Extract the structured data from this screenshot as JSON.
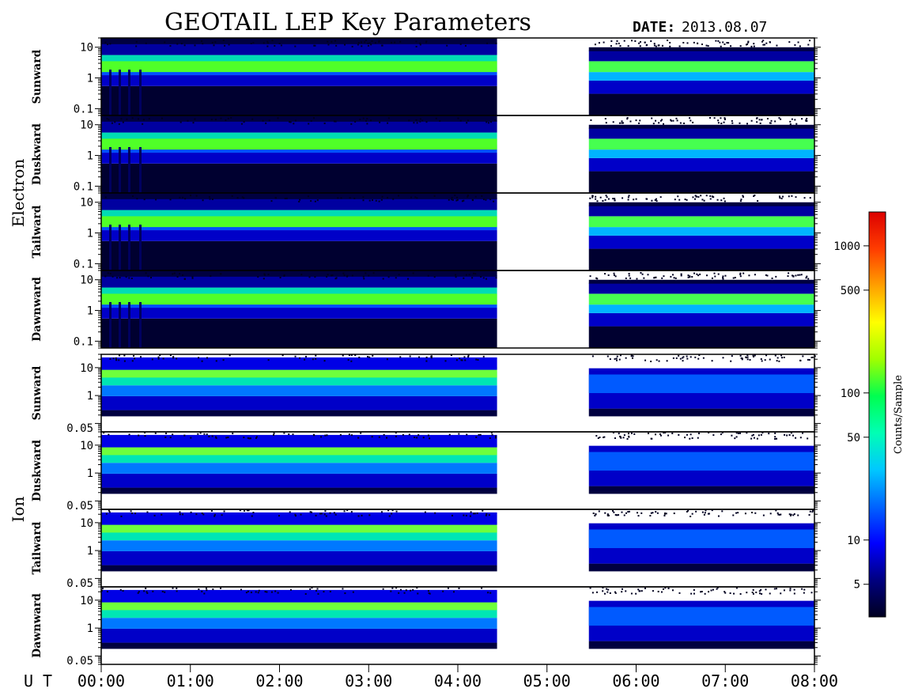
{
  "chart_data": {
    "type": "heatmap",
    "title": "GEOTAIL LEP Key Parameters",
    "date_label": "DATE:",
    "date_value": "2013.08.07",
    "x_axis_label": "U T",
    "x_range_hours": [
      0,
      8
    ],
    "x_ticks": [
      "00:00",
      "01:00",
      "02:00",
      "03:00",
      "04:00",
      "05:00",
      "06:00",
      "07:00",
      "08:00"
    ],
    "data_gaps_hours": [
      [
        4.44,
        5.47
      ]
    ],
    "groups": [
      {
        "name": "Electron",
        "y_scale": "log",
        "y_range": [
          0.06,
          20
        ],
        "y_ticks": [
          {
            "value": 10,
            "label": "10"
          },
          {
            "value": 1,
            "label": "1"
          },
          {
            "value": 0.1,
            "label": "0.1"
          }
        ],
        "panels": [
          "Sunward",
          "Duskward",
          "Tailward",
          "Dawnward"
        ]
      },
      {
        "name": "Ion",
        "y_scale": "log",
        "y_range": [
          0.05,
          30
        ],
        "y_ticks": [
          {
            "value": 10,
            "label": "10"
          },
          {
            "value": 1,
            "label": "1"
          },
          {
            "value": 0.05,
            "label": "0.05"
          }
        ],
        "panels": [
          "Sunward",
          "Duskward",
          "Tailward",
          "Dawnward"
        ]
      }
    ],
    "colorbar": {
      "label": "Counts/Sample",
      "scale": "log",
      "range": [
        3,
        1700
      ],
      "ticks": [
        {
          "value": 1000,
          "label": "1000"
        },
        {
          "value": 500,
          "label": "500"
        },
        {
          "value": 100,
          "label": "100"
        },
        {
          "value": 50,
          "label": "50"
        },
        {
          "value": 10,
          "label": "10"
        },
        {
          "value": 5,
          "label": "5"
        }
      ],
      "colors": [
        "#000020",
        "#000080",
        "#0000ff",
        "#0064ff",
        "#00c8ff",
        "#00ffb4",
        "#00ff50",
        "#a0ff00",
        "#ffff00",
        "#ffa000",
        "#ff3c00",
        "#dc0000"
      ]
    }
  }
}
